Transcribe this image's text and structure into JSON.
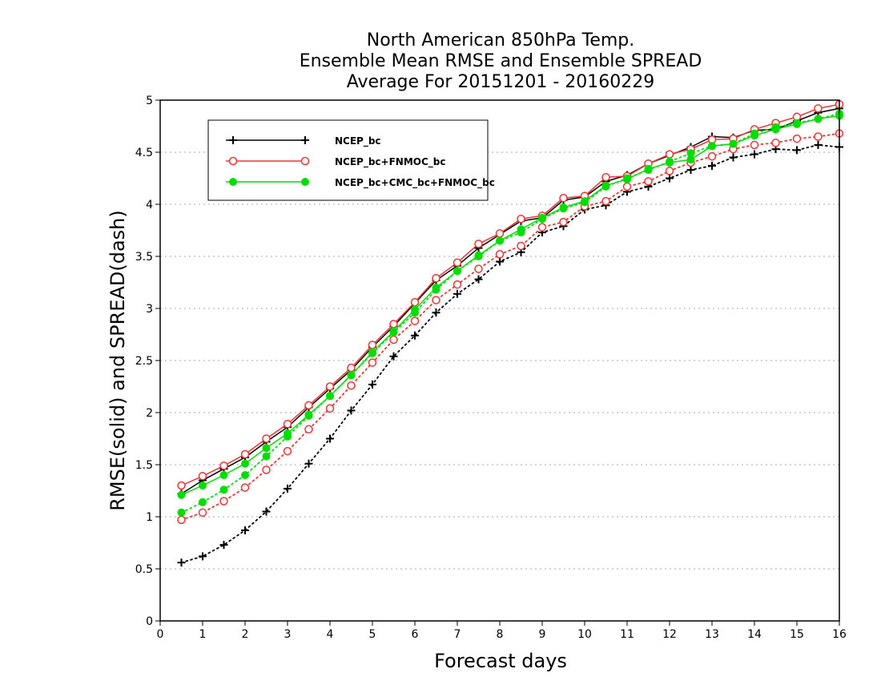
{
  "chart_data": {
    "type": "line",
    "title": [
      "North American 850hPa Temp.",
      "Ensemble Mean RMSE and Ensemble SPREAD",
      "Average For 20151201 - 20160229"
    ],
    "xlabel": "Forecast days",
    "ylabel": "RMSE(solid) and SPREAD(dash)",
    "xlim": [
      0,
      16
    ],
    "ylim": [
      0,
      5
    ],
    "xticks": [
      0,
      1,
      2,
      3,
      4,
      5,
      6,
      7,
      8,
      9,
      10,
      11,
      12,
      13,
      14,
      15,
      16
    ],
    "yticks": [
      0,
      0.5,
      1,
      1.5,
      2,
      2.5,
      3,
      3.5,
      4,
      4.5,
      5
    ],
    "grid": "horizontal dotted",
    "legend_position": "top-left",
    "x": [
      0.5,
      1,
      1.5,
      2,
      2.5,
      3,
      3.5,
      4,
      4.5,
      5,
      5.5,
      6,
      6.5,
      7,
      7.5,
      8,
      8.5,
      9,
      9.5,
      10,
      10.5,
      11,
      11.5,
      12,
      12.5,
      13,
      13.5,
      14,
      14.5,
      15,
      15.5,
      16
    ],
    "series": [
      {
        "name": "NCEP_bc",
        "color": "#000000",
        "marker": "plus",
        "rmse": [
          1.22,
          1.35,
          1.46,
          1.57,
          1.72,
          1.86,
          2.05,
          2.23,
          2.41,
          2.63,
          2.83,
          3.05,
          3.27,
          3.41,
          3.58,
          3.71,
          3.84,
          3.87,
          4.04,
          4.07,
          4.22,
          4.28,
          4.39,
          4.47,
          4.55,
          4.65,
          4.64,
          4.71,
          4.72,
          4.8,
          4.88,
          4.92
        ],
        "spread": [
          0.56,
          0.62,
          0.73,
          0.87,
          1.05,
          1.27,
          1.51,
          1.75,
          2.02,
          2.27,
          2.54,
          2.74,
          2.96,
          3.14,
          3.28,
          3.45,
          3.54,
          3.73,
          3.79,
          3.95,
          3.99,
          4.12,
          4.17,
          4.25,
          4.33,
          4.37,
          4.45,
          4.48,
          4.53,
          4.52,
          4.57,
          4.55
        ]
      },
      {
        "name": "NCEP_bc+FNMOC_bc",
        "color": "#ee3333",
        "marker": "open-circle",
        "rmse": [
          1.3,
          1.39,
          1.49,
          1.6,
          1.75,
          1.89,
          2.07,
          2.25,
          2.43,
          2.65,
          2.85,
          3.06,
          3.29,
          3.44,
          3.62,
          3.72,
          3.86,
          3.89,
          4.06,
          4.08,
          4.26,
          4.27,
          4.39,
          4.48,
          4.53,
          4.62,
          4.63,
          4.72,
          4.78,
          4.84,
          4.92,
          4.96
        ],
        "spread": [
          0.97,
          1.04,
          1.15,
          1.28,
          1.45,
          1.63,
          1.84,
          2.04,
          2.26,
          2.48,
          2.7,
          2.88,
          3.08,
          3.23,
          3.38,
          3.52,
          3.6,
          3.78,
          3.83,
          3.98,
          4.03,
          4.17,
          4.22,
          4.32,
          4.4,
          4.46,
          4.53,
          4.57,
          4.59,
          4.63,
          4.65,
          4.68
        ]
      },
      {
        "name": "NCEP_bc+CMC_bc+FNMOC_bc",
        "color": "#00dd00",
        "marker": "filled-circle",
        "rmse": [
          1.21,
          1.3,
          1.4,
          1.51,
          1.66,
          1.8,
          1.98,
          2.16,
          2.36,
          2.58,
          2.78,
          2.99,
          3.2,
          3.36,
          3.51,
          3.65,
          3.76,
          3.87,
          3.97,
          4.03,
          4.18,
          4.24,
          4.34,
          4.4,
          4.43,
          4.56,
          4.58,
          4.66,
          4.72,
          4.77,
          4.82,
          4.85
        ],
        "spread": [
          1.04,
          1.14,
          1.26,
          1.4,
          1.58,
          1.77,
          1.97,
          2.16,
          2.36,
          2.57,
          2.77,
          2.96,
          3.18,
          3.36,
          3.5,
          3.65,
          3.73,
          3.86,
          3.96,
          4.02,
          4.17,
          4.25,
          4.33,
          4.41,
          4.49,
          4.56,
          4.58,
          4.68,
          4.74,
          4.78,
          4.82,
          4.87
        ]
      }
    ]
  }
}
